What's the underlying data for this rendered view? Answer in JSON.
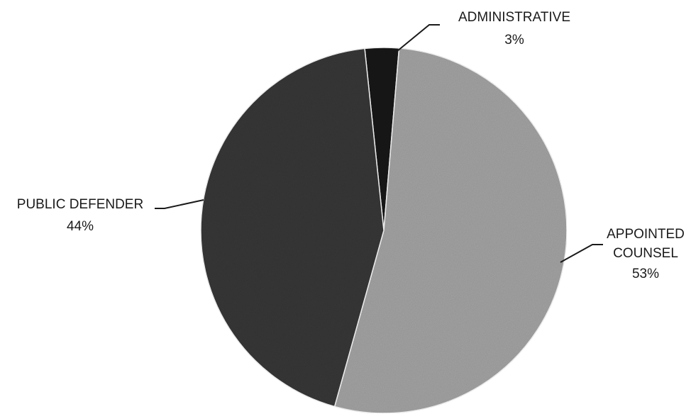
{
  "chart_data": {
    "type": "pie",
    "title": "",
    "start_angle_deg": -6,
    "direction": "clockwise",
    "slices": [
      {
        "label": "ADMINISTRATIVE",
        "value": 3,
        "value_label": "3%",
        "color": "#1e1e1e"
      },
      {
        "label": "APPOINTED COUNSEL",
        "label_lines": [
          "APPOINTED",
          "COUNSEL"
        ],
        "value": 53,
        "value_label": "53%",
        "color": "#a9a9a9"
      },
      {
        "label": "PUBLIC DEFENDER",
        "value": 44,
        "value_label": "44%",
        "color": "#3a3a3a"
      }
    ],
    "legend": "none",
    "data_labels": "outside with leader lines"
  }
}
